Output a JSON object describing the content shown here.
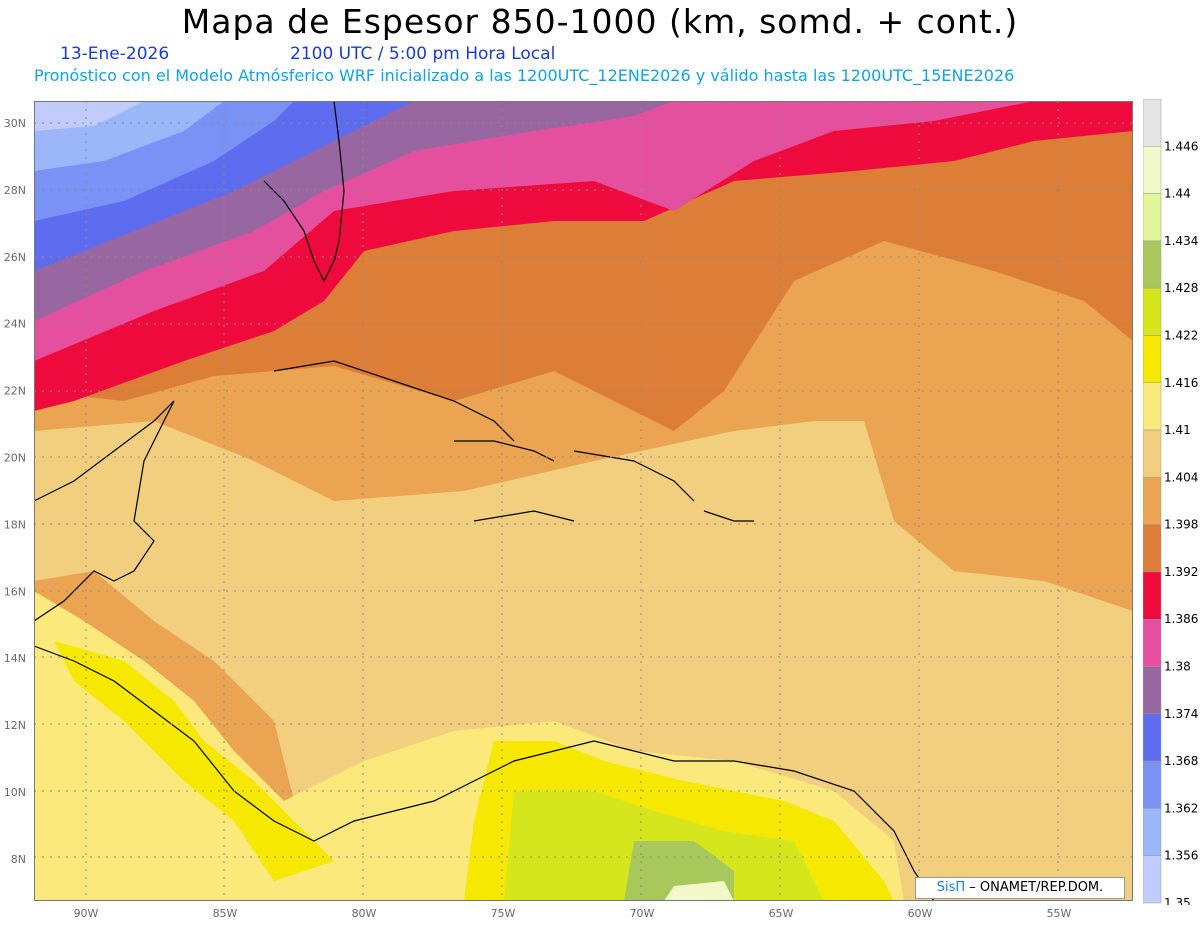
{
  "title": "Mapa de Espesor 850-1000 (km, somd. + cont.)",
  "date": "13-Ene-2026",
  "time": "2100 UTC / 5:00 pm Hora Local",
  "forecast": "Pronóstico con el Modelo Atmósferico WRF inicializado a las 1200UTC_12ENE2026 y válido hasta las  1200UTC_15ENE2026",
  "lat_labels": [
    "30N",
    "28N",
    "26N",
    "24N",
    "22N",
    "20N",
    "18N",
    "16N",
    "14N",
    "12N",
    "10N",
    "8N"
  ],
  "lon_labels": [
    "90W",
    "85W",
    "80W",
    "75W",
    "70W",
    "65W",
    "60W",
    "55W"
  ],
  "colorbar": {
    "values": [
      "1.446",
      "1.44",
      "1.434",
      "1.428",
      "1.422",
      "1.416",
      "1.41",
      "1.404",
      "1.398",
      "1.392",
      "1.386",
      "1.38",
      "1.374",
      "1.368",
      "1.362",
      "1.356",
      "1.35"
    ],
    "colors": [
      "#e6e6e6",
      "#f2f8c8",
      "#e2f59a",
      "#a8c85c",
      "#d6e61c",
      "#f6e800",
      "#fbe97c",
      "#f2cf7e",
      "#eaa452",
      "#dc7d38",
      "#ee0a3c",
      "#e4509e",
      "#9866a0",
      "#5e6cf0",
      "#7a92f6",
      "#9cb6fa",
      "#c2ccfc"
    ]
  },
  "credit": {
    "logo": "SisΠ",
    "text": "– ONAMET/REP.DOM."
  }
}
